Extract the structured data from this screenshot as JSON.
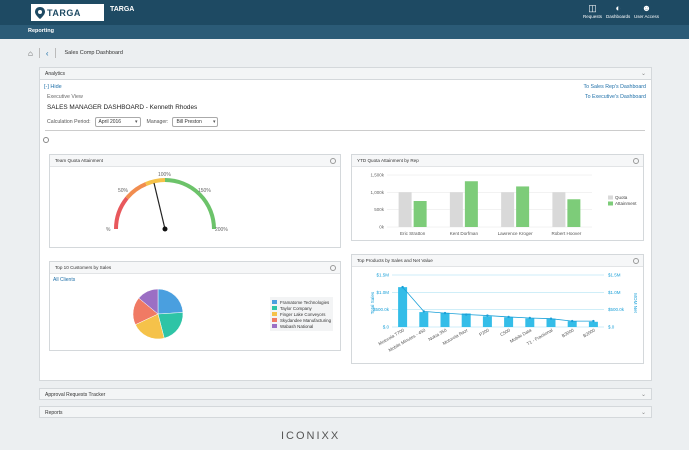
{
  "header": {
    "logo_text": "TARGA",
    "app_name": "TARGA",
    "nav": [
      {
        "label": "Requests",
        "icon": "inbox-icon"
      },
      {
        "label": "Dashboards",
        "icon": "dashboard-icon"
      },
      {
        "label": "User Access",
        "icon": "user-icon"
      }
    ]
  },
  "subnav": {
    "label": "Reporting"
  },
  "breadcrumb": {
    "title": "Sales Comp Dashboard"
  },
  "analytics": {
    "title": "Analytics",
    "hide_label": "[-] Hide",
    "view_label": "Executive View",
    "dashboard_title": "SALES MANAGER DASHBOARD - Kenneth Rhodes",
    "link_rep": "To Sales Rep's Dashboard",
    "link_exec": "To Executive's Dashboard",
    "calc_period_label": "Calculation Period:",
    "calc_period_value": "April 2016",
    "manager_label": "Manager:",
    "manager_value": "Bill Preston"
  },
  "cards": {
    "gauge": {
      "title": "Team Quota Attainment",
      "labels": [
        "%",
        "50%",
        "100%",
        "150%",
        "200%"
      ],
      "value_pct": 95
    },
    "ytd": {
      "title": "YTD Quota Attainment by Rep"
    },
    "customers": {
      "title": "Top 10 Customers by Sales",
      "filter": "All Clients"
    },
    "products": {
      "title": "Top Products by Sales and Net Value"
    }
  },
  "chart_data": [
    {
      "type": "bar",
      "title": "YTD Quota Attainment by Rep",
      "categories": [
        "Eric Stratton",
        "Kent Dorfman",
        "Lawrence Kroger",
        "Robert Hoover"
      ],
      "yticks": [
        "1,500k",
        "1,000k",
        "500k",
        "0k"
      ],
      "ylim": [
        0,
        1500
      ],
      "series": [
        {
          "name": "Quota",
          "color": "#d9d9d9",
          "values": [
            1000,
            1000,
            1000,
            1000
          ]
        },
        {
          "name": "Attainment",
          "color": "#7dcc79",
          "values": [
            750,
            1320,
            1170,
            800
          ]
        }
      ],
      "legend": "right"
    },
    {
      "type": "pie",
      "title": "Top 10 Customers by Sales",
      "slices": [
        {
          "name": "Framatome Technologies",
          "value": 24,
          "color": "#4a9fdf"
        },
        {
          "name": "Taylor Company",
          "value": 22,
          "color": "#2ec4a6"
        },
        {
          "name": "Finger Lake Conveyors",
          "value": 22,
          "color": "#f5c24a"
        },
        {
          "name": "Skydandee Manufacturing",
          "value": 18,
          "color": "#f07a64"
        },
        {
          "name": "Wabash National",
          "value": 14,
          "color": "#9b6fc4"
        }
      ],
      "legend": "right"
    },
    {
      "type": "bar",
      "title": "Top Products by Sales and Net Value",
      "categories": [
        "Motorola T700",
        "Mobile Minutes - 450",
        "Nokia 350",
        "Motorola Razr",
        "P200",
        "C500",
        "Mobile Data",
        "T1 - Fractional",
        "B3000",
        "B2000"
      ],
      "y_label": "Total Sales",
      "y2_label": "MOM Net",
      "yticks_left": [
        "$1.5M",
        "$1.0M",
        "$500.0k",
        "$.0"
      ],
      "yticks_right": [
        "$1.5M",
        "$1.0M",
        "$500.0k",
        "$.0"
      ],
      "ylim": [
        0,
        1500000
      ],
      "series": [
        {
          "name": "Total Sales",
          "color": "#34bde8",
          "values": [
            1150000,
            430000,
            410000,
            390000,
            310000,
            280000,
            250000,
            240000,
            170000,
            150000
          ]
        },
        {
          "name": "MOM Net",
          "color": "#1aa0d8",
          "type": "line",
          "values": [
            1150000,
            450000,
            400000,
            360000,
            330000,
            290000,
            260000,
            240000,
            170000,
            170000
          ]
        }
      ]
    }
  ],
  "accordions": {
    "approval": "Approval Requests Tracker",
    "reports": "Reports"
  },
  "footer": {
    "brand": "ICONIXX"
  }
}
